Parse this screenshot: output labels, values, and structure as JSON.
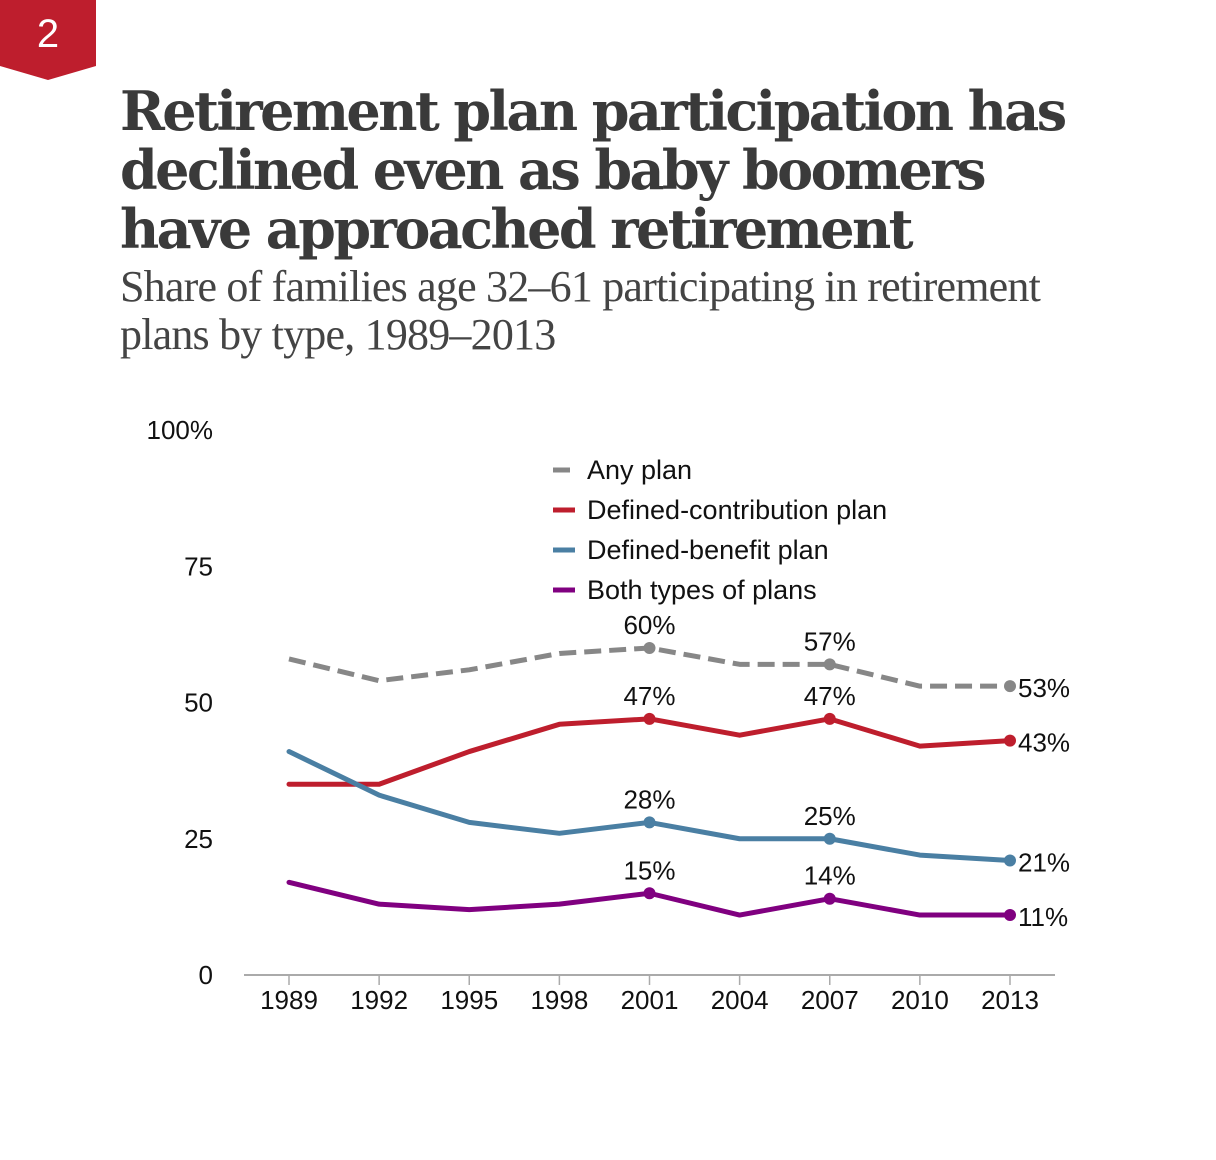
{
  "badge": {
    "number": "2",
    "color": "#BE1E2D"
  },
  "header": {
    "title": "Retirement plan participation has declined even as baby boomers have approached retirement",
    "subtitle": "Share of families age 32–61 participating in retirement plans by type, 1989–2013"
  },
  "chart_data": {
    "type": "line",
    "title": "Retirement plan participation has declined even as baby boomers have approached retirement",
    "subtitle": "Share of families age 32–61 participating in retirement plans by type, 1989–2013",
    "xlabel": "",
    "ylabel": "",
    "x": [
      "1989",
      "1992",
      "1995",
      "1998",
      "2001",
      "2004",
      "2007",
      "2010",
      "2013"
    ],
    "ylim": [
      0,
      100
    ],
    "yticks": [
      0,
      25,
      50,
      75,
      100
    ],
    "ytick_labels": [
      "0",
      "25",
      "50",
      "75",
      "100%"
    ],
    "grid": false,
    "legend_position": "top-center",
    "series": [
      {
        "name": "Any plan",
        "color": "#878787",
        "style": "dashed",
        "values": [
          58,
          54,
          56,
          59,
          60,
          57,
          57,
          53,
          53
        ],
        "labeled_points": [
          {
            "year": "2001",
            "label": "60%"
          },
          {
            "year": "2007",
            "label": "57%"
          },
          {
            "year": "2013",
            "label": "53%"
          }
        ]
      },
      {
        "name": "Defined-contribution plan",
        "color": "#BE1E2D",
        "style": "solid",
        "values": [
          35,
          35,
          41,
          46,
          47,
          44,
          47,
          42,
          43
        ],
        "labeled_points": [
          {
            "year": "2001",
            "label": "47%"
          },
          {
            "year": "2007",
            "label": "47%"
          },
          {
            "year": "2013",
            "label": "43%"
          }
        ]
      },
      {
        "name": "Defined-benefit plan",
        "color": "#4A7FA3",
        "style": "solid",
        "values": [
          41,
          33,
          28,
          26,
          28,
          25,
          25,
          22,
          21
        ],
        "labeled_points": [
          {
            "year": "2001",
            "label": "28%"
          },
          {
            "year": "2007",
            "label": "25%"
          },
          {
            "year": "2013",
            "label": "21%"
          }
        ]
      },
      {
        "name": "Both types of plans",
        "color": "#800080",
        "style": "solid",
        "values": [
          17,
          13,
          12,
          13,
          15,
          11,
          14,
          11,
          11
        ],
        "labeled_points": [
          {
            "year": "2001",
            "label": "15%"
          },
          {
            "year": "2007",
            "label": "14%"
          },
          {
            "year": "2013",
            "label": "11%"
          }
        ]
      }
    ]
  }
}
